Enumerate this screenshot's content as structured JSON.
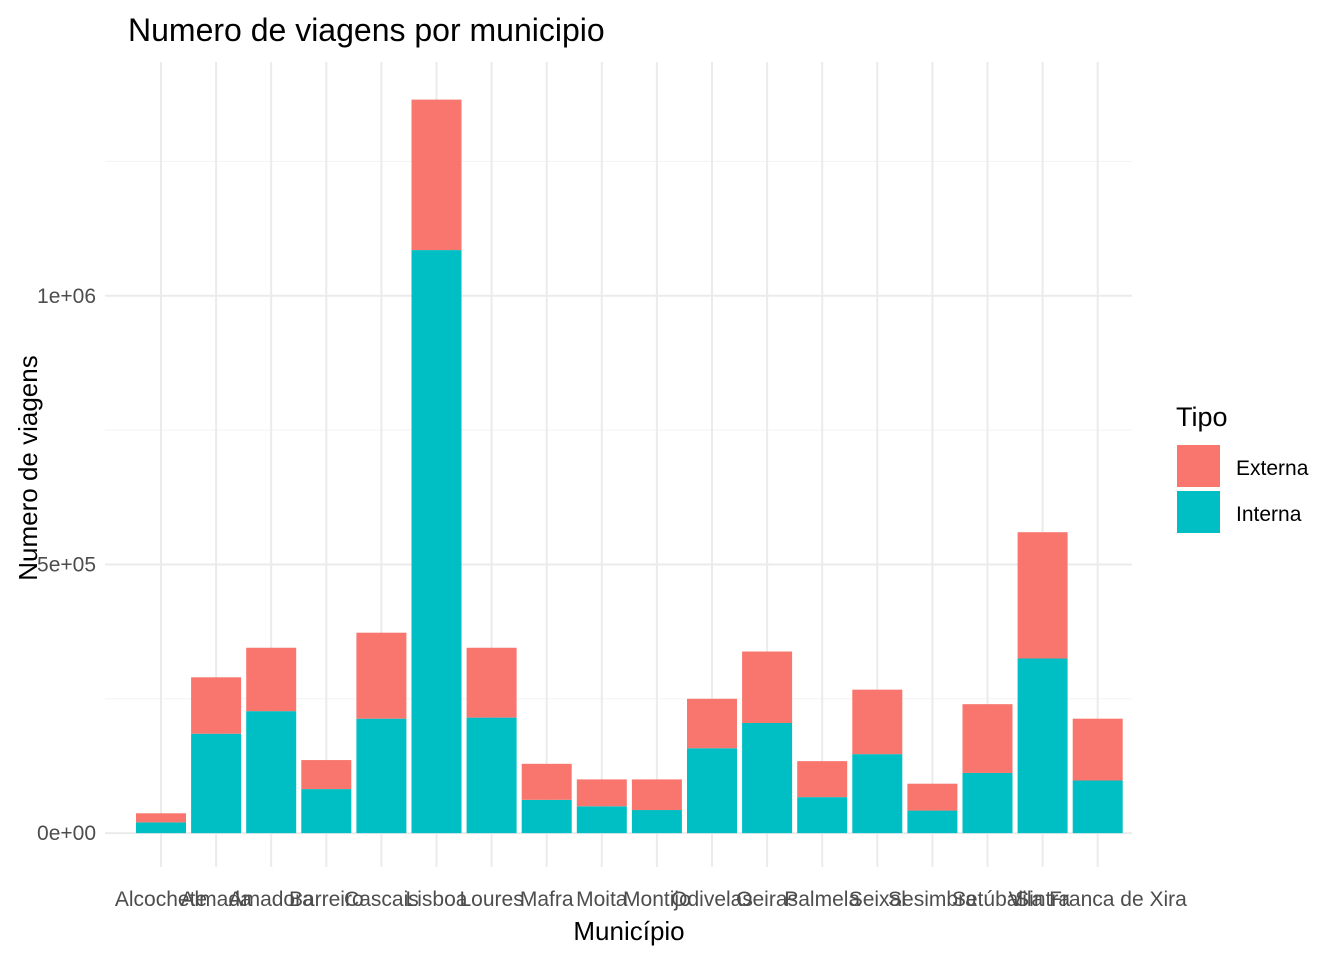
{
  "chart_data": {
    "type": "bar",
    "stacked": true,
    "title": "Numero de viagens por municipio",
    "xlabel": "Município",
    "ylabel": "Numero de viagens",
    "categories": [
      "Alcochete",
      "Almada",
      "Amadora",
      "Barreiro",
      "Cascais",
      "Lisboa",
      "Loures",
      "Mafra",
      "Moita",
      "Montijo",
      "Odivelas",
      "Oeiras",
      "Palmela",
      "Seixal",
      "Sesimbra",
      "Setúbal",
      "Sintra",
      "Vila Franca de Xira"
    ],
    "series": [
      {
        "name": "Interna",
        "color": "#00BFC4",
        "values": [
          20000,
          185000,
          227000,
          82000,
          213000,
          1085000,
          215000,
          62000,
          50000,
          43000,
          158000,
          205000,
          67000,
          147000,
          42000,
          112000,
          325000,
          98000
        ]
      },
      {
        "name": "Externa",
        "color": "#F8766D",
        "values": [
          17000,
          105000,
          118000,
          54000,
          160000,
          280000,
          130000,
          67000,
          50000,
          57000,
          92000,
          133000,
          67000,
          120000,
          50000,
          128000,
          235000,
          115000
        ]
      }
    ],
    "ylim": [
      -63000,
      1435000
    ],
    "yticks": [
      0,
      500000,
      1000000
    ],
    "ytick_labels": [
      "0e+00",
      "5e+05",
      "1e+06"
    ],
    "grid": true,
    "legend": {
      "title": "Tipo",
      "position": "right",
      "entries": [
        "Externa",
        "Interna"
      ]
    }
  }
}
